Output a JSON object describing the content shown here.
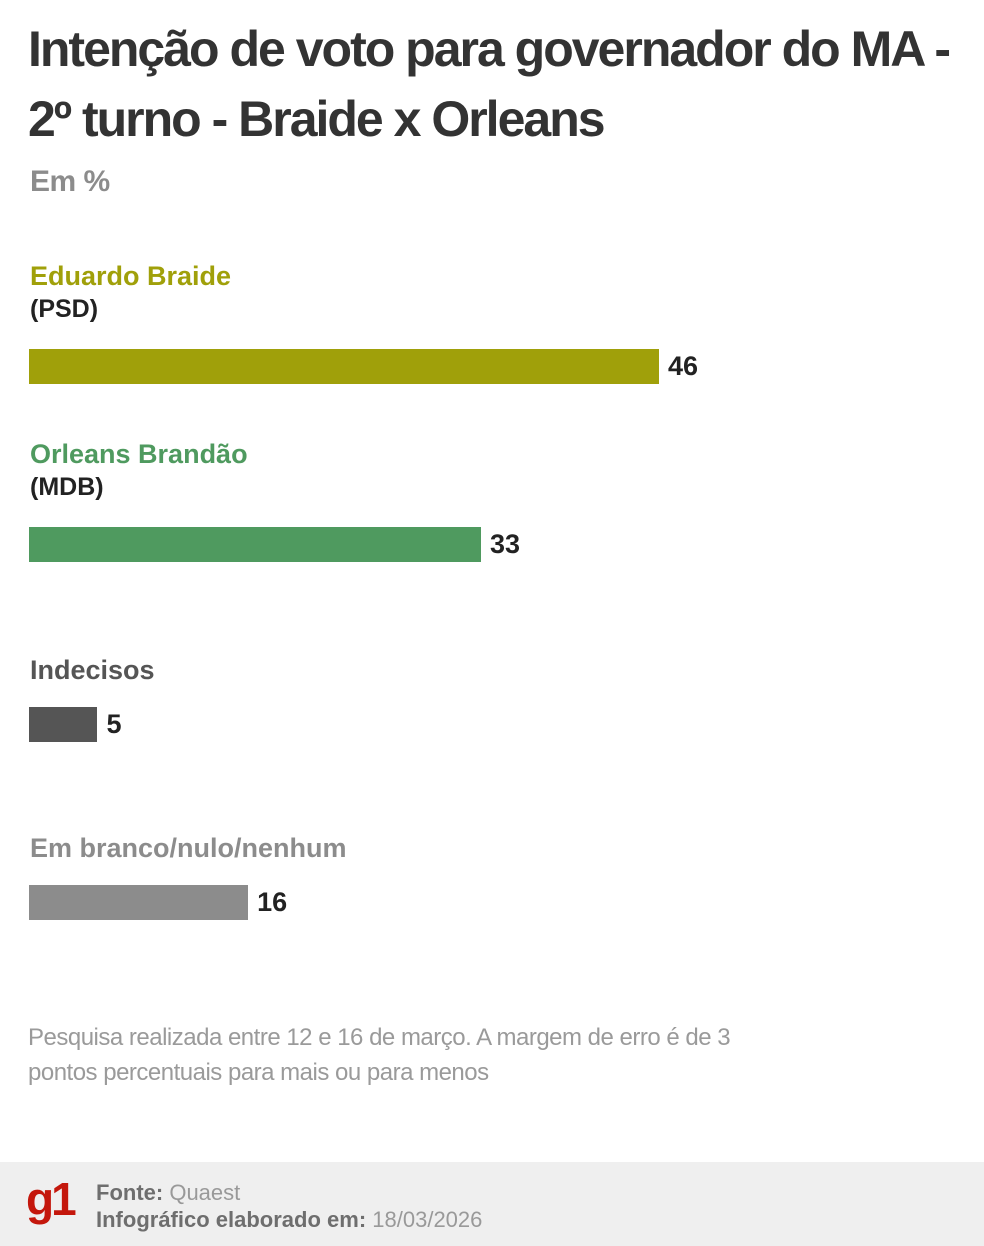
{
  "chart_data": {
    "type": "bar",
    "orientation": "horizontal",
    "title": "Intenção de voto para governador do MA - 2º turno - Braide x Orleans",
    "subtitle": "Em %",
    "categories": [
      "Eduardo Braide",
      "Orleans Brandão",
      "Indecisos",
      "Em branco/nulo/nenhum"
    ],
    "sublabels": [
      "(PSD)",
      "(MDB)",
      "",
      ""
    ],
    "values": [
      46,
      33,
      5,
      16
    ],
    "colors": [
      "#a0a00a",
      "#4f9a5f",
      "#555555",
      "#8c8c8c"
    ],
    "label_colors": [
      "#a0a00a",
      "#4f9a5f",
      "#555555",
      "#8c8c8c"
    ],
    "grid": false,
    "note": "Pesquisa realizada entre 12 e 16 de março. A margem de erro é de 3 pontos percentuais para mais ou para menos"
  },
  "footer": {
    "logo": "g1",
    "source_label": "Fonte:",
    "source_value": "Quaest",
    "date_label": "Infográfico elaborado em:",
    "date_value": "18/03/2026"
  }
}
